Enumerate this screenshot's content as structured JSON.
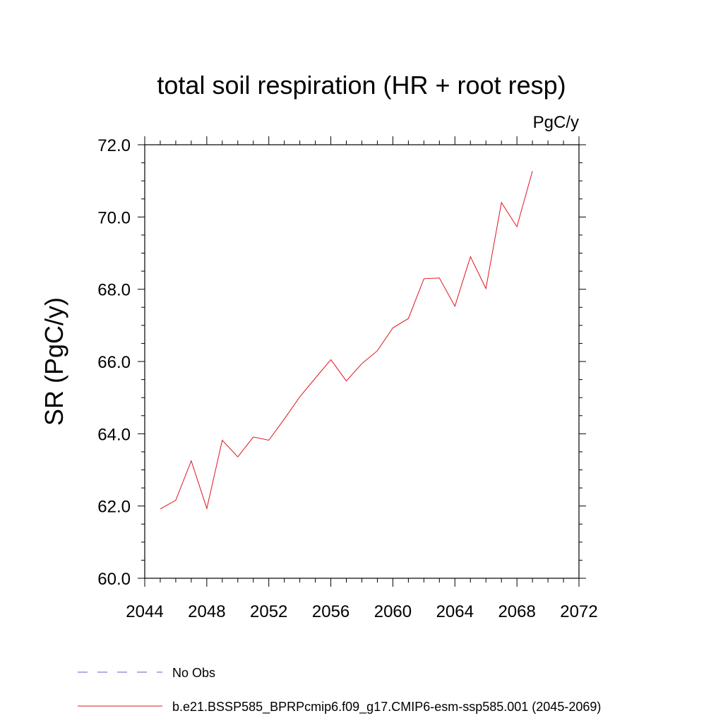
{
  "chart_data": {
    "type": "line",
    "title": "total soil respiration (HR + root resp)",
    "units_label": "PgC/y",
    "ylabel": "SR  (PgC/y)",
    "xlabel": "",
    "xlim": [
      2044,
      2072
    ],
    "ylim": [
      60.0,
      72.0
    ],
    "x_ticks": [
      2044,
      2048,
      2052,
      2056,
      2060,
      2064,
      2068,
      2072
    ],
    "x_tick_labels": [
      "2044",
      "2048",
      "2052",
      "2056",
      "2060",
      "2064",
      "2068",
      "2072"
    ],
    "y_ticks": [
      60,
      62,
      64,
      66,
      68,
      70,
      72
    ],
    "y_tick_labels": [
      "60.0",
      "62.0",
      "64.0",
      "66.0",
      "68.0",
      "70.0",
      "72.0"
    ],
    "grid": false,
    "legend_position": "bottom",
    "series": [
      {
        "name": "b.e21.BSSP585_BPRPcmip6.f09_g17.CMIP6-esm-ssp585.001 (2045-2069)",
        "color": "#e0141e",
        "style": "solid",
        "x": [
          2045,
          2046,
          2047,
          2048,
          2049,
          2050,
          2051,
          2052,
          2053,
          2054,
          2055,
          2056,
          2057,
          2058,
          2059,
          2060,
          2061,
          2062,
          2063,
          2064,
          2065,
          2066,
          2067,
          2068,
          2069
        ],
        "y": [
          61.92,
          62.16,
          63.25,
          61.93,
          63.82,
          63.36,
          63.91,
          63.82,
          64.41,
          65.02,
          65.54,
          66.05,
          65.46,
          65.94,
          66.3,
          66.93,
          67.19,
          68.29,
          68.31,
          67.53,
          68.9,
          68.02,
          70.4,
          69.73,
          71.27
        ]
      }
    ],
    "legend": [
      {
        "label": "No Obs",
        "color": "#6a5acd",
        "style": "dashed"
      },
      {
        "label": "b.e21.BSSP585_BPRPcmip6.f09_g17.CMIP6-esm-ssp585.001 (2045-2069)",
        "color": "#e0141e",
        "style": "solid"
      }
    ]
  }
}
